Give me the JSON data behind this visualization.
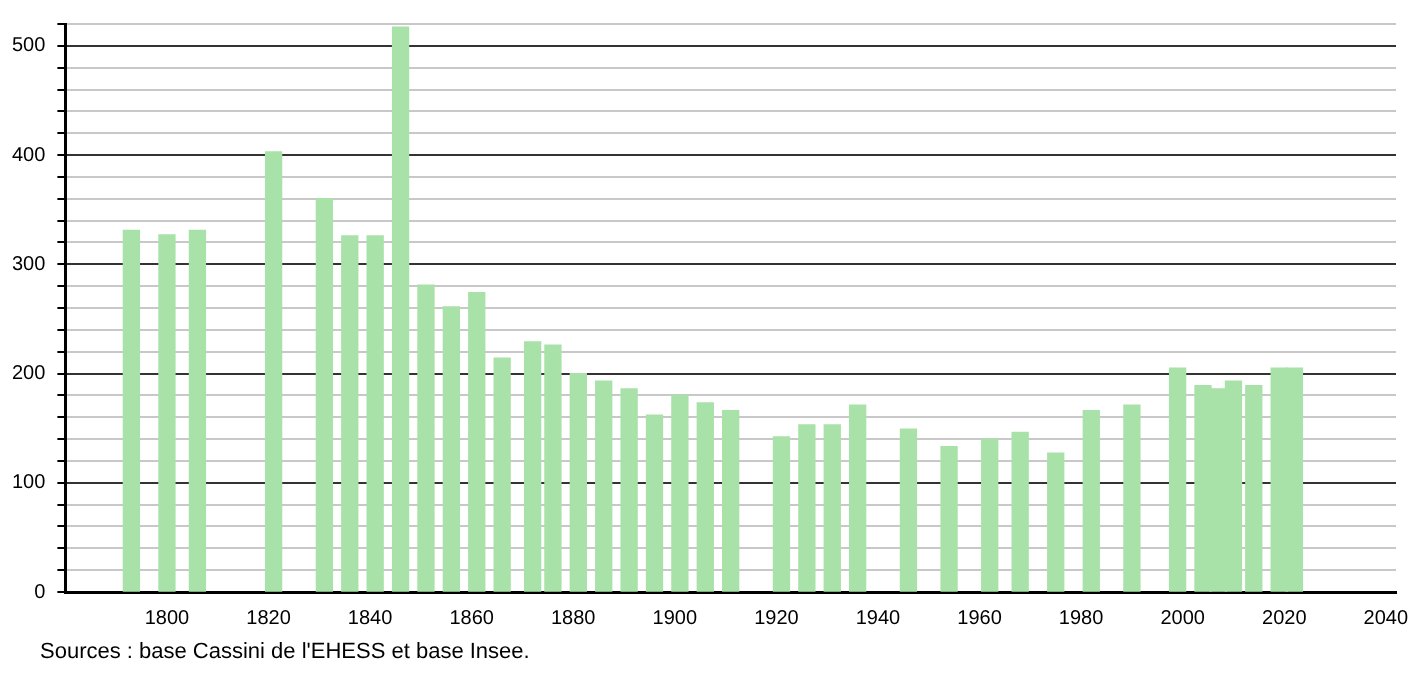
{
  "chart_data": {
    "type": "bar",
    "color": "#a8e2a8",
    "x": [
      1793,
      1800,
      1806,
      1821,
      1831,
      1836,
      1841,
      1846,
      1851,
      1856,
      1861,
      1866,
      1872,
      1876,
      1881,
      1886,
      1891,
      1896,
      1901,
      1906,
      1911,
      1921,
      1926,
      1931,
      1936,
      1946,
      1954,
      1962,
      1968,
      1975,
      1982,
      1990,
      1999,
      2004,
      2007,
      2010,
      2014,
      2019,
      2022
    ],
    "values": [
      331,
      327,
      331,
      403,
      360,
      326,
      326,
      517,
      281,
      261,
      274,
      214,
      229,
      226,
      200,
      193,
      186,
      162,
      180,
      173,
      166,
      142,
      153,
      153,
      171,
      149,
      133,
      140,
      146,
      127,
      166,
      171,
      205,
      189,
      186,
      193,
      189,
      205,
      205
    ],
    "xlim": [
      1780,
      2042
    ],
    "xticks": [
      1800,
      1820,
      1840,
      1860,
      1880,
      1900,
      1920,
      1940,
      1960,
      1980,
      2000,
      2020,
      2040
    ],
    "ylim": [
      0,
      520
    ],
    "yticks": [
      0,
      {
        "value": 20,
        "label": null
      },
      {
        "value": 40,
        "label": null
      },
      {
        "value": 60,
        "label": null
      },
      {
        "value": 80,
        "label": null
      },
      100,
      {
        "value": 120,
        "label": null
      },
      {
        "value": 140,
        "label": null
      },
      {
        "value": 160,
        "label": null
      },
      {
        "value": 180,
        "label": null
      },
      200,
      {
        "value": 220,
        "label": null
      },
      {
        "value": 240,
        "label": null
      },
      {
        "value": 260,
        "label": null
      },
      {
        "value": 280,
        "label": null
      },
      300,
      {
        "value": 320,
        "label": null
      },
      {
        "value": 340,
        "label": null
      },
      {
        "value": 360,
        "label": null
      },
      {
        "value": 380,
        "label": null
      },
      400,
      {
        "value": 420,
        "label": null
      },
      {
        "value": 440,
        "label": null
      },
      {
        "value": 460,
        "label": null
      },
      {
        "value": 480,
        "label": null
      },
      500,
      {
        "value": 520,
        "label": null
      }
    ],
    "grid": "y",
    "annotations": [
      "Sources : base Cassini de l'EHESS et base Insee."
    ]
  }
}
